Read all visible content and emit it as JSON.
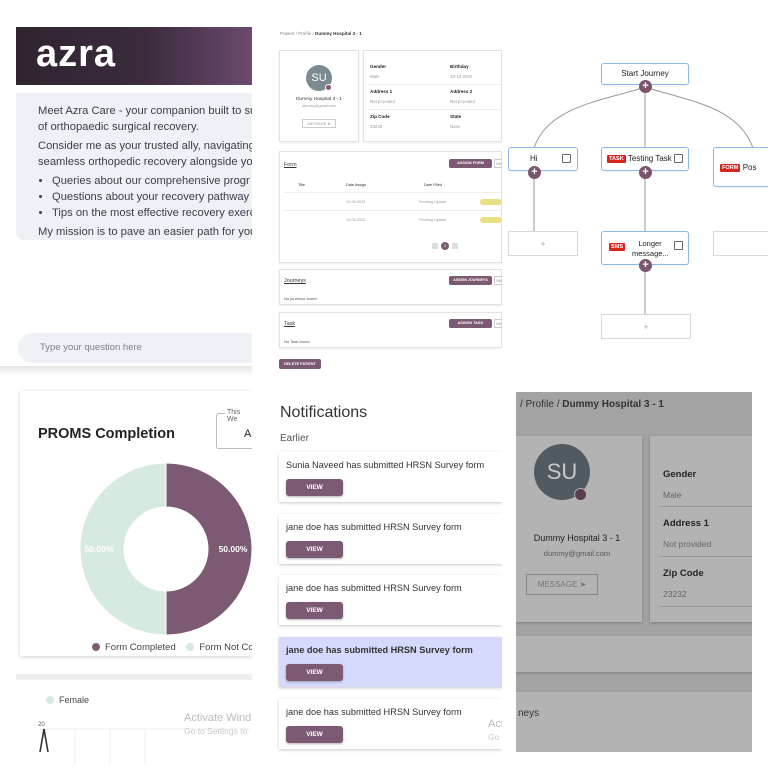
{
  "azra": {
    "logo": "azra",
    "intro": "Meet Azra Care - your companion built to sup",
    "intro2": "of orthopaedic surgical recovery.",
    "consider": "Consider me as your trusted ally, navigating th",
    "consider2": "seamless orthopedic recovery alongside you.",
    "bullets": [
      "Queries about our comprehensive progr",
      "Questions about your recovery pathway",
      "Tips on the most effective recovery exerc"
    ],
    "mission": "My mission is to pave an easier path for your r",
    "input_placeholder": "Type your question here"
  },
  "profile_small": {
    "breadcrumb": [
      "Patient",
      "Profile",
      "Dummy Hospital 3 - 1"
    ],
    "avatar_initials": "SU",
    "name": "Dummy Hospital 3 - 1",
    "email": "dummy@gmail.com",
    "message_label": "MESSAGE",
    "fields": [
      {
        "label": "Gender",
        "value": "Male"
      },
      {
        "label": "Birthday",
        "value": "10-10-2022"
      },
      {
        "label": "Address 1",
        "value": "Not provided"
      },
      {
        "label": "Address 2",
        "value": "Not provided"
      },
      {
        "label": "Zip Code",
        "value": "23232"
      },
      {
        "label": "State",
        "value": "None"
      }
    ],
    "forms": {
      "title": "Form",
      "assign_label": "ASSIGN FORM",
      "more_label": "UN",
      "columns": [
        "Title",
        "Date Assign",
        "Date Filled"
      ],
      "rows": [
        {
          "date": "10-06-2023",
          "status": "Pending Update"
        },
        {
          "date": "10-06-2023",
          "status": "Pending Update"
        }
      ],
      "page": "1"
    },
    "journeys": {
      "title": "Journeys",
      "assign_label": "ASSIGN JOURNEYS",
      "more_label": "UN",
      "empty": "No journeys found."
    },
    "tasks": {
      "title": "Task",
      "assign_label": "ASSIGN TASK",
      "more_label": "UN",
      "empty": "No Task found."
    },
    "delete_label": "DELETE PATIENT"
  },
  "journey": {
    "start": "Start Journey",
    "nodes": [
      {
        "label": "Hi",
        "tag": ""
      },
      {
        "label": "Testing Task",
        "tag": "TASK"
      },
      {
        "label": "Pos",
        "tag": "FORM"
      },
      {
        "label": "Longer message...",
        "tag": "SMS"
      }
    ],
    "plus": "+"
  },
  "proms": {
    "title": "PROMS Completion",
    "filter_label": "This We",
    "filter_value": "All",
    "legend_female": "Female",
    "axis_tick": "20",
    "watermark_title": "Activate Wind",
    "watermark_sub": "Go to Settings to"
  },
  "chart_data": {
    "type": "pie",
    "title": "PROMS Completion",
    "categories": [
      "Form Completed",
      "Form Not Complete"
    ],
    "legend_labels": [
      "Form Completed",
      "Form Not Comple"
    ],
    "values": [
      50.0,
      50.0
    ],
    "data_labels": [
      "50.00%",
      "50.00%"
    ],
    "colors": [
      "#7d5a73",
      "#d6eadf"
    ],
    "legend_position": "bottom"
  },
  "notifications": {
    "title": "Notifications",
    "section": "Earlier",
    "view_label": "VIEW",
    "items": [
      {
        "text": "Sunia Naveed has submitted HRSN Survey form"
      },
      {
        "text": "jane doe has submitted HRSN Survey form"
      },
      {
        "text": "jane doe has submitted HRSN Survey form"
      },
      {
        "text": "jane doe has submitted HRSN Survey form"
      },
      {
        "text": "jane doe has submitted HRSN Survey form"
      }
    ],
    "watermark_title": "Act",
    "watermark_sub": "Go"
  },
  "profile_large": {
    "breadcrumb_sep": "/",
    "breadcrumb_profile": "Profile",
    "breadcrumb_current": "Dummy Hospital 3 - 1",
    "avatar_initials": "SU",
    "name": "Dummy Hospital 3 - 1",
    "email": "dummy@gmail.com",
    "message_label": "MESSAGE",
    "fields": [
      {
        "label": "Gender",
        "value": "Male"
      },
      {
        "label": "Address 1",
        "value": "Not provided"
      },
      {
        "label": "Zip Code",
        "value": "23232"
      }
    ],
    "journeys_partial": "neys"
  },
  "colors": {
    "brand": "#7d5a73",
    "not_complete": "#d6eadf",
    "node_border": "#8fb8e6",
    "tag_red": "#d9261c",
    "highlight": "#d5dafc"
  }
}
